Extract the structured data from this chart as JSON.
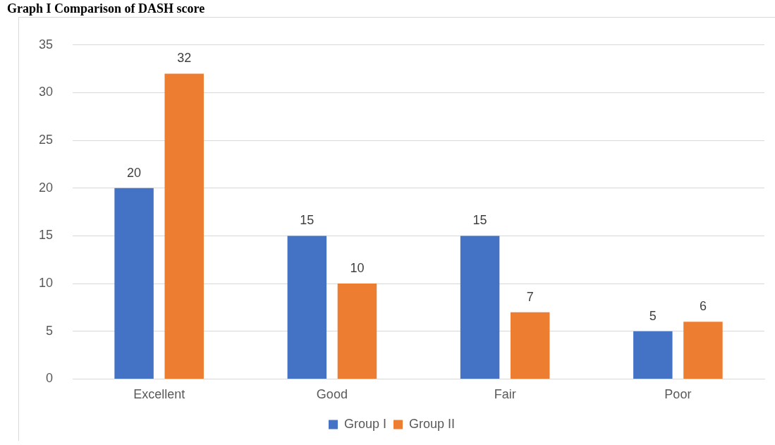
{
  "chart_data": {
    "type": "bar",
    "title": "Graph I Comparison of DASH score",
    "categories": [
      "Excellent",
      "Good",
      "Fair",
      "Poor"
    ],
    "series": [
      {
        "name": "Group I",
        "color": "#4472c4",
        "values": [
          20,
          15,
          15,
          5
        ]
      },
      {
        "name": "Group II",
        "color": "#ed7d31",
        "values": [
          32,
          10,
          7,
          6
        ]
      }
    ],
    "ylim": [
      0,
      35
    ],
    "yticks": [
      0,
      5,
      10,
      15,
      20,
      25,
      30,
      35
    ],
    "grid": "y",
    "legend": "bottom",
    "data_labels": true
  }
}
